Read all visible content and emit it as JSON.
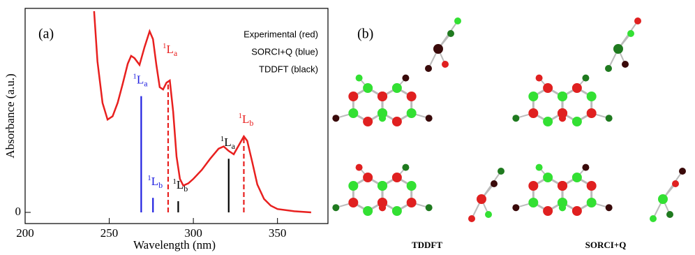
{
  "chart_data": {
    "type": "line",
    "panel_label": "(a)",
    "x_label": "Wavelength (nm)",
    "y_label": "Absorbance (a.u.)",
    "xlim": [
      200,
      380
    ],
    "xticks": [
      200,
      250,
      300,
      350
    ],
    "ylim": [
      -0.1,
      1.825
    ],
    "yticks": [
      0
    ],
    "series": [
      {
        "name": "Experimental (red)",
        "color": "#e8201f",
        "x": [
          241,
          243,
          246,
          249,
          252,
          255,
          258,
          261,
          263,
          265,
          268,
          271,
          274,
          276,
          278,
          280,
          282,
          284,
          286,
          288,
          290,
          292,
          294,
          297,
          300,
          305,
          310,
          315,
          318,
          321,
          324,
          327,
          330,
          332,
          335,
          338,
          342,
          346,
          350,
          360,
          370
        ],
        "values": [
          1.8,
          1.35,
          0.98,
          0.83,
          0.86,
          0.98,
          1.15,
          1.33,
          1.4,
          1.38,
          1.32,
          1.48,
          1.62,
          1.55,
          1.32,
          1.12,
          1.1,
          1.16,
          1.18,
          0.9,
          0.5,
          0.3,
          0.24,
          0.26,
          0.3,
          0.38,
          0.48,
          0.57,
          0.59,
          0.55,
          0.52,
          0.6,
          0.68,
          0.64,
          0.45,
          0.25,
          0.12,
          0.06,
          0.03,
          0.01,
          0
        ],
        "peak_x": [
          285,
          330
        ],
        "peak_values": [
          1.15,
          0.68
        ],
        "peak_labels": [
          {
            "sup": "1",
            "main": "L",
            "sub": "a"
          },
          {
            "sup": "1",
            "main": "L",
            "sub": "b"
          }
        ]
      },
      {
        "name": "SORCI+Q (blue)",
        "color": "#2020e0",
        "x": [
          269,
          276
        ],
        "values": [
          1.04,
          0.13
        ],
        "labels": [
          {
            "sup": "1",
            "main": "L",
            "sub": "a"
          },
          {
            "sup": "1",
            "main": "L",
            "sub": "b"
          }
        ]
      },
      {
        "name": "TDDFT (black)",
        "color": "#000000",
        "x": [
          321,
          291
        ],
        "values": [
          0.48,
          0.1
        ],
        "labels": [
          {
            "sup": "1",
            "main": "L",
            "sub": "a"
          },
          {
            "sup": "1",
            "main": "L",
            "sub": "b"
          }
        ]
      }
    ]
  },
  "structures": {
    "panel_label": "(b)",
    "captions": [
      "TDDFT",
      "SORCI+Q"
    ]
  }
}
